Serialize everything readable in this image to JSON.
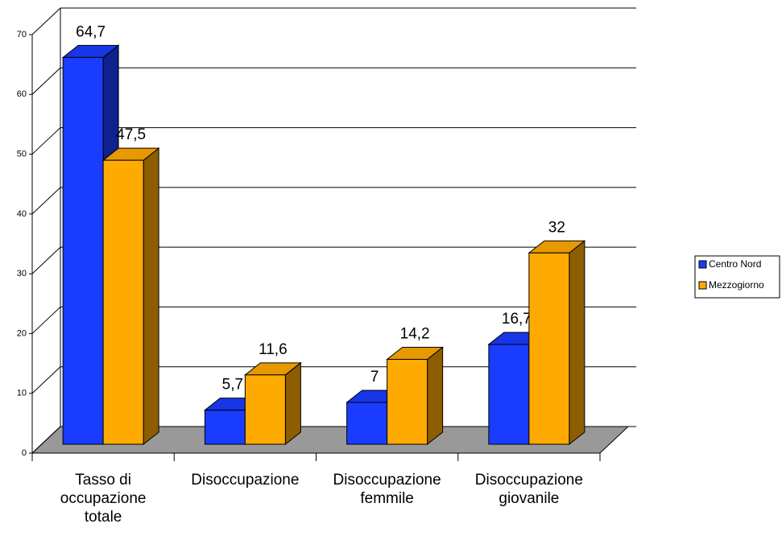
{
  "chart_data": {
    "type": "bar3d",
    "categories": [
      "Tasso di occupazione totale",
      "Disoccupazione",
      "Disoccupazione femmile",
      "Disoccupazione giovanile"
    ],
    "series": [
      {
        "name": "Centro Nord",
        "color": "#1a3cff",
        "values": [
          64.7,
          5.7,
          7,
          16.7
        ],
        "value_labels": [
          "64,7",
          "5,7",
          "7",
          "16,7"
        ]
      },
      {
        "name": "Mezzogiorno",
        "color": "#ffaa00",
        "values": [
          47.5,
          11.6,
          14.2,
          32
        ],
        "value_labels": [
          "47,5",
          "11,6",
          "14,2",
          "32"
        ]
      }
    ],
    "ylim": [
      0,
      70
    ],
    "yticks": [
      0,
      10,
      20,
      30,
      40,
      50,
      60,
      70
    ],
    "grid": true,
    "legend": "right"
  }
}
